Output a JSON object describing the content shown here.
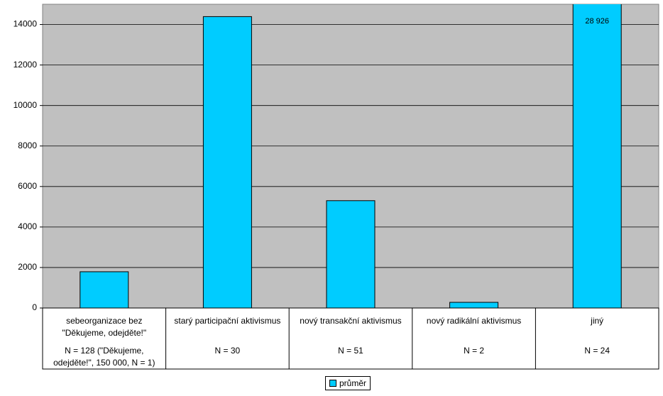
{
  "chart_data": {
    "type": "bar",
    "categories": [
      "sebeorganizace bez \"Děkujeme, odejděte!\"",
      "starý participační aktivismus",
      "nový transakční aktivismus",
      "nový radikální aktivismus",
      "jiný"
    ],
    "category_notes": [
      "N = 128 (\"Děkujeme, odejděte!\", 150 000, N = 1)",
      "N = 30",
      "N = 51",
      "N = 2",
      "N = 24"
    ],
    "series": [
      {
        "name": "průměr",
        "color": "#00ccff",
        "values": [
          1790,
          14390,
          5300,
          280,
          28926
        ],
        "value_labels": [
          null,
          null,
          null,
          null,
          "28 926"
        ]
      }
    ],
    "ylim": [
      0,
      15000
    ],
    "yticks": [
      0,
      2000,
      4000,
      6000,
      8000,
      10000,
      12000,
      14000
    ],
    "grid": true,
    "legend": "bottom"
  }
}
